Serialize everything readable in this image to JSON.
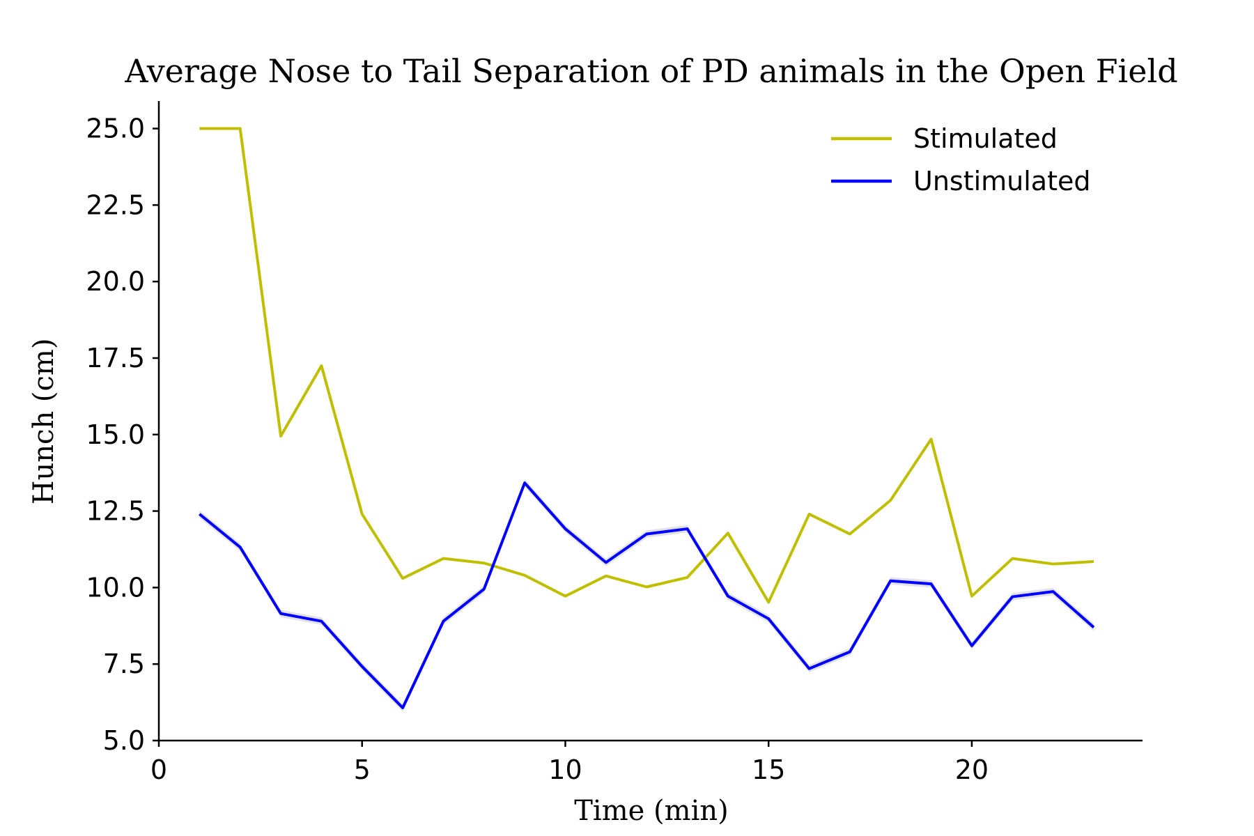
{
  "chart_data": {
    "type": "line",
    "title": "Average Nose to Tail Separation of PD animals in the Open Field",
    "xlabel": "Time (min)",
    "ylabel": "Hunch (cm)",
    "xlim": [
      0,
      24.2
    ],
    "ylim": [
      5.0,
      25.9
    ],
    "x_ticks": [
      0,
      5,
      10,
      15,
      20
    ],
    "x_tick_labels": [
      "0",
      "5",
      "10",
      "15",
      "20"
    ],
    "y_ticks": [
      5.0,
      7.5,
      10.0,
      12.5,
      15.0,
      17.5,
      20.0,
      22.5,
      25.0
    ],
    "y_tick_labels": [
      "5.0",
      "7.5",
      "10.0",
      "12.5",
      "15.0",
      "17.5",
      "20.0",
      "22.5",
      "25.0"
    ],
    "grid": false,
    "legend_position": "top-right",
    "x": [
      1,
      2,
      3,
      4,
      5,
      6,
      7,
      8,
      9,
      10,
      11,
      12,
      13,
      14,
      15,
      16,
      17,
      18,
      19,
      20,
      21,
      22,
      23
    ],
    "series": [
      {
        "name": "Stimulated",
        "color": "#bfbf00",
        "values": [
          25.0,
          25.0,
          14.95,
          17.25,
          12.4,
          10.3,
          10.95,
          10.8,
          10.4,
          9.72,
          10.38,
          10.02,
          10.33,
          11.78,
          9.52,
          12.4,
          11.75,
          12.85,
          14.85,
          9.72,
          10.95,
          10.77,
          10.85
        ]
      },
      {
        "name": "Unstimulated",
        "color": "#0000ff",
        "band_color": "#d9d9e6",
        "values": [
          12.4,
          11.32,
          9.15,
          8.9,
          7.42,
          6.07,
          8.9,
          9.95,
          13.42,
          11.92,
          10.82,
          11.75,
          11.92,
          9.72,
          8.98,
          7.35,
          7.9,
          10.22,
          10.12,
          8.1,
          9.7,
          9.87,
          8.7
        ]
      }
    ]
  }
}
